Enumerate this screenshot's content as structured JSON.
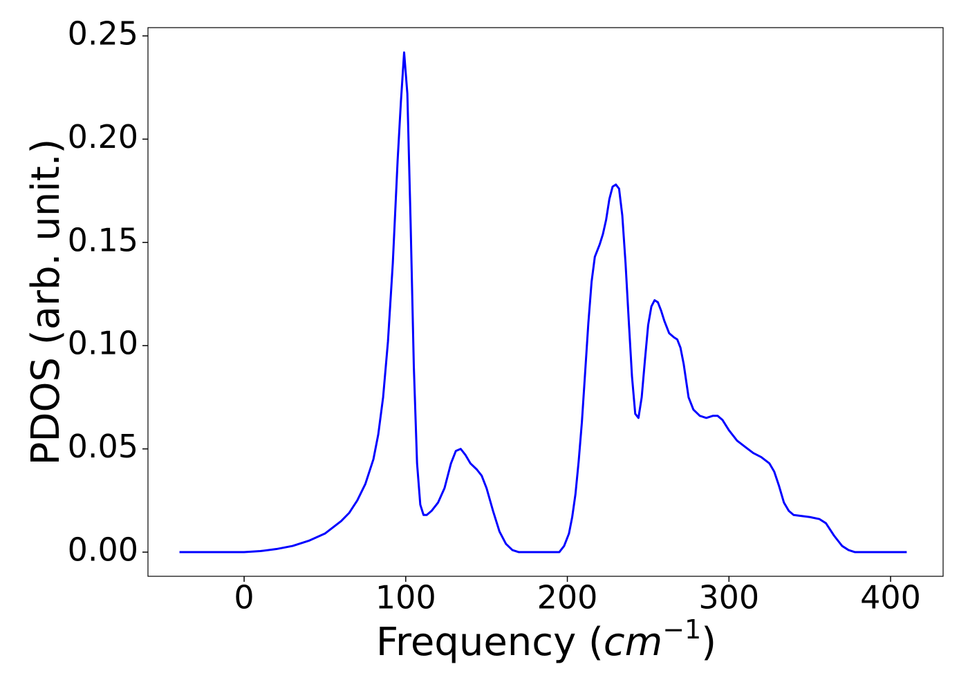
{
  "chart_data": {
    "type": "line",
    "ylabel": "PDOS (arb. unit.)",
    "xlabel": {
      "text": "Frequency (",
      "math": "cm",
      "sup": "−1",
      "end": ")"
    },
    "color": "#0000ff",
    "xlim": [
      -59.5,
      432.5
    ],
    "ylim": [
      -0.0117,
      0.254
    ],
    "xticks": [
      0,
      100,
      200,
      300,
      400
    ],
    "yticks": [
      {
        "value": 0,
        "label": "0.00"
      },
      {
        "value": 0.05,
        "label": "0.05"
      },
      {
        "value": 0.1,
        "label": "0.10"
      },
      {
        "value": 0.15,
        "label": "0.15"
      },
      {
        "value": 0.2,
        "label": "0.20"
      },
      {
        "value": 0.25,
        "label": "0.25"
      }
    ],
    "x": [
      -40,
      0,
      10,
      20,
      30,
      40,
      50,
      60,
      65,
      70,
      75,
      80,
      83,
      86,
      89,
      92,
      95,
      97,
      99,
      101,
      103,
      105,
      107,
      109,
      111,
      113,
      116,
      120,
      124,
      128,
      131,
      134,
      137,
      140,
      144,
      147,
      150,
      154,
      158,
      162,
      166,
      170,
      195,
      198,
      201,
      203,
      205,
      207,
      209,
      211,
      213,
      215,
      217,
      220,
      222,
      224,
      226,
      228,
      230,
      232,
      234,
      236,
      238,
      240,
      242,
      244,
      246,
      248,
      250,
      252,
      254,
      256,
      258,
      260,
      263,
      266,
      268,
      270,
      272,
      275,
      278,
      282,
      286,
      290,
      293,
      296,
      300,
      305,
      310,
      315,
      320,
      325,
      328,
      331,
      334,
      337,
      340,
      350,
      356,
      360,
      365,
      370,
      374,
      378,
      410
    ],
    "values": [
      0,
      0,
      0.0005,
      0.0015,
      0.003,
      0.0055,
      0.009,
      0.015,
      0.019,
      0.025,
      0.033,
      0.045,
      0.057,
      0.075,
      0.102,
      0.14,
      0.19,
      0.218,
      0.242,
      0.222,
      0.16,
      0.09,
      0.043,
      0.023,
      0.018,
      0.018,
      0.02,
      0.024,
      0.031,
      0.043,
      0.049,
      0.05,
      0.047,
      0.043,
      0.04,
      0.037,
      0.031,
      0.02,
      0.01,
      0.004,
      0.001,
      0,
      0,
      0.003,
      0.009,
      0.017,
      0.028,
      0.044,
      0.063,
      0.087,
      0.111,
      0.131,
      0.143,
      0.149,
      0.154,
      0.161,
      0.171,
      0.177,
      0.178,
      0.176,
      0.163,
      0.14,
      0.112,
      0.085,
      0.067,
      0.065,
      0.075,
      0.093,
      0.11,
      0.119,
      0.122,
      0.121,
      0.117,
      0.112,
      0.106,
      0.104,
      0.103,
      0.099,
      0.091,
      0.075,
      0.069,
      0.066,
      0.065,
      0.066,
      0.066,
      0.064,
      0.059,
      0.054,
      0.051,
      0.048,
      0.046,
      0.043,
      0.039,
      0.032,
      0.024,
      0.02,
      0.018,
      0.017,
      0.016,
      0.014,
      0.008,
      0.003,
      0.001,
      0,
      0
    ]
  }
}
